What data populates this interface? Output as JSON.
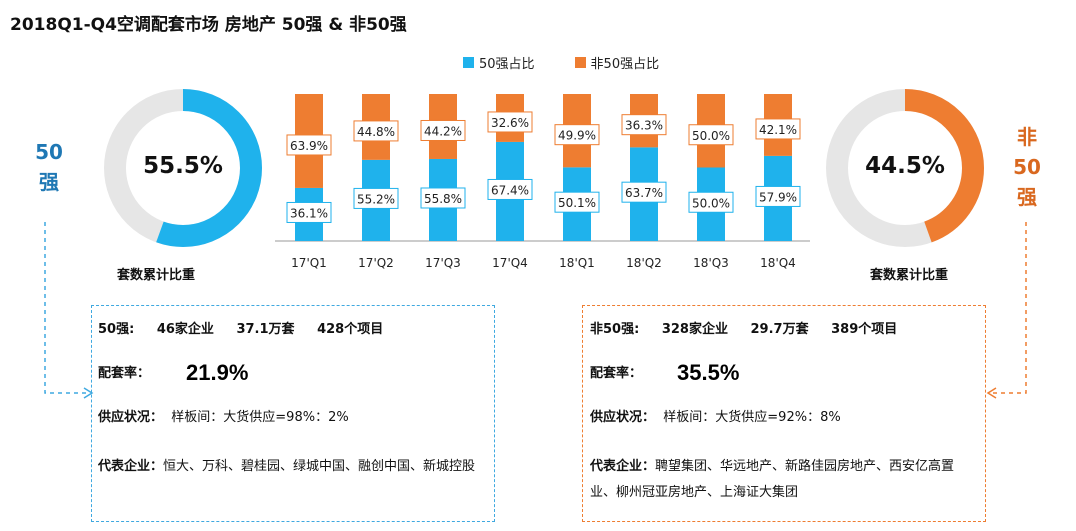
{
  "title": "2018Q1-Q4空调配套市场 房地产 50强 & 非50强",
  "left_donut": {
    "value_label": "55.5%",
    "fraction": 0.555,
    "color": "#1fb2ec",
    "track": "#e6e6e6",
    "caption": "套数累计比重",
    "side_label_1": "50",
    "side_label_2": "强",
    "side_color": "#1f78b4"
  },
  "right_donut": {
    "value_label": "44.5%",
    "fraction": 0.445,
    "color": "#ee7d31",
    "track": "#e6e6e6",
    "caption": "套数累计比重",
    "side_label_1": "非",
    "side_label_2": "50",
    "side_label_3": "强",
    "side_color": "#d9681f"
  },
  "chart_data": {
    "type": "bar",
    "stacked": true,
    "categories": [
      "17'Q1",
      "17'Q2",
      "17'Q3",
      "17'Q4",
      "18'Q1",
      "18'Q2",
      "18'Q3",
      "18'Q4"
    ],
    "series": [
      {
        "name": "50强占比",
        "color": "#1fb2ec",
        "values": [
          36.1,
          55.2,
          55.8,
          67.4,
          50.1,
          63.7,
          50.0,
          57.9
        ],
        "labels": [
          "36.1%",
          "55.2%",
          "55.8%",
          "67.4%",
          "50.1%",
          "63.7%",
          "50.0%",
          "57.9%"
        ]
      },
      {
        "name": "非50强占比",
        "color": "#ee7d31",
        "values": [
          63.9,
          44.8,
          44.2,
          32.6,
          49.9,
          36.3,
          50.0,
          42.1
        ],
        "labels": [
          "63.9%",
          "44.8%",
          "44.2%",
          "32.6%",
          "49.9%",
          "36.3%",
          "50.0%",
          "42.1%"
        ]
      }
    ],
    "bar_scale_note": "",
    "legend": "top"
  },
  "left_panel": {
    "border": "#3fa9e0",
    "line1": [
      "50强:",
      "46家企业",
      "37.1万套",
      "428个项目"
    ],
    "rate_label": "配套率：",
    "rate_value": "21.9%",
    "supply_label": "供应状况：",
    "supply_value": "样板间：大货供应=98%：2%",
    "rep_label": "代表企业：",
    "rep_value": "恒大、万科、碧桂园、绿城中国、融创中国、新城控股"
  },
  "right_panel": {
    "border": "#ee7d31",
    "line1": [
      "非50强:",
      "328家企业",
      "29.7万套",
      "389个项目"
    ],
    "rate_label": "配套率：",
    "rate_value": "35.5%",
    "supply_label": "供应状况：",
    "supply_value": "样板间：大货供应=92%：8%",
    "rep_label": "代表企业：",
    "rep_value": "聘望集团、华远地产、新路佳园房地产、西安亿高置业、柳州冠亚房地产、上海证大集团"
  }
}
